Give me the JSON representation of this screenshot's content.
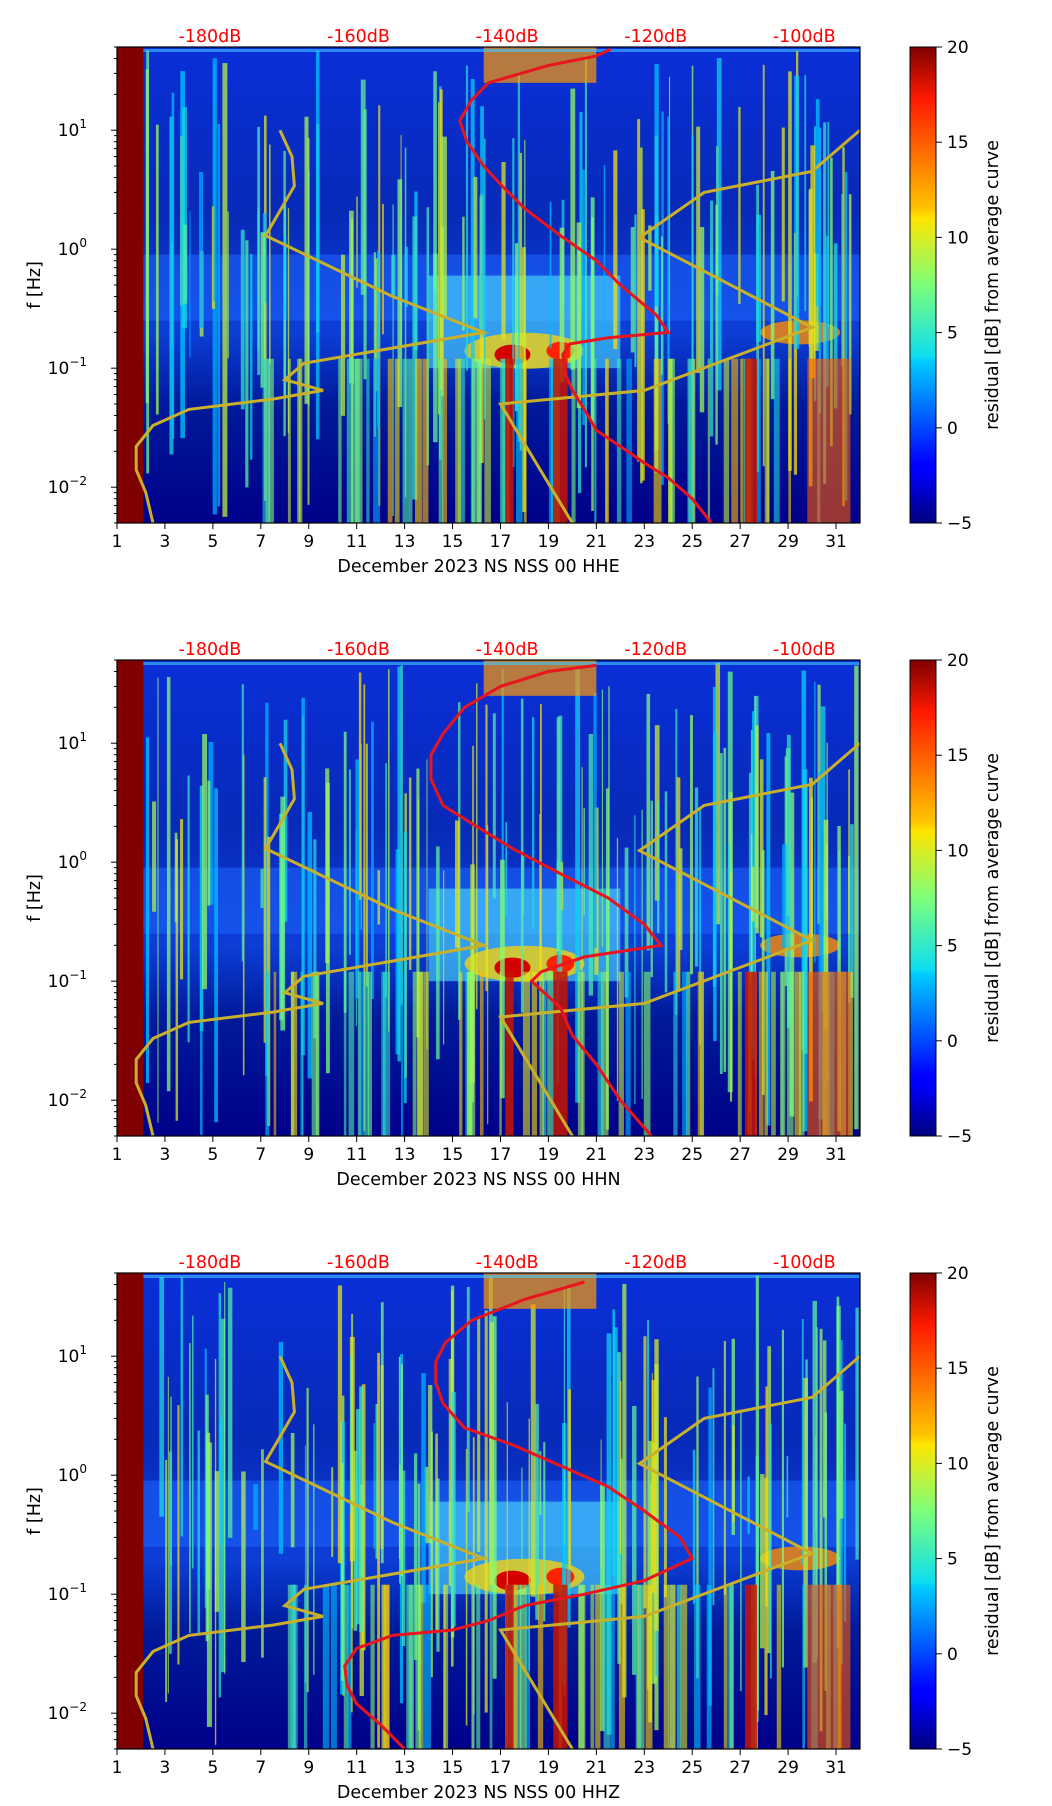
{
  "chart_data": [
    {
      "type": "heatmap",
      "xlabel": "December 2023 NS NSS 00 HHE",
      "ylabel": "f [Hz]",
      "colorbar_label": "residual [dB] from average curve",
      "x_ticks": [
        "1",
        "3",
        "5",
        "7",
        "9",
        "11",
        "13",
        "15",
        "17",
        "19",
        "21",
        "23",
        "25",
        "27",
        "29",
        "31"
      ],
      "y_ticks": [
        "10^{-2}",
        "10^{-1}",
        "10^{0}",
        "10^{1}"
      ],
      "xlim": [
        1,
        32
      ],
      "ylim_hz": [
        0.005,
        50
      ],
      "colorbar_ticks": [
        "−5",
        "0",
        "5",
        "10",
        "15",
        "20"
      ],
      "clim": [
        -5,
        20
      ],
      "top_axis_labels": [
        "-180dB",
        "-160dB",
        "-140dB",
        "-120dB",
        "-100dB"
      ],
      "red_curve": {
        "x": [
          25.8,
          25,
          24,
          23,
          22,
          21,
          20.5,
          20,
          19.7,
          19.6,
          19.9,
          21.5,
          24,
          23.5,
          22,
          21,
          19.5,
          18,
          17,
          16.3,
          15.6,
          15.3,
          15.8,
          16.5,
          19,
          21,
          21.6
        ],
        "f": [
          0.005,
          0.008,
          0.012,
          0.016,
          0.022,
          0.03,
          0.045,
          0.065,
          0.09,
          0.13,
          0.16,
          0.18,
          0.2,
          0.28,
          0.5,
          0.8,
          1.3,
          2.2,
          3.5,
          5,
          8,
          12,
          18,
          25,
          35,
          42,
          48
        ]
      },
      "yellow_curve": {
        "x": [
          2.5,
          2.2,
          1.8,
          1.8,
          2.5,
          4,
          7.5,
          9.6,
          8,
          8.8,
          16.3,
          12.5,
          7.2,
          8.4,
          8.3,
          7.8
        ],
        "f": [
          0.005,
          0.009,
          0.014,
          0.022,
          0.033,
          0.045,
          0.055,
          0.065,
          0.08,
          0.11,
          0.2,
          0.4,
          1.3,
          3.4,
          6,
          10
        ]
      },
      "yellow_curve_right": {
        "x": [
          20,
          17,
          23,
          30,
          22.8,
          25.5,
          30,
          32
        ],
        "f": [
          0.005,
          0.05,
          0.065,
          0.22,
          1.25,
          3,
          4.5,
          10
        ]
      }
    },
    {
      "type": "heatmap",
      "xlabel": "December 2023 NS NSS 00 HHN",
      "ylabel": "f [Hz]",
      "colorbar_label": "residual [dB] from average curve",
      "x_ticks": [
        "1",
        "3",
        "5",
        "7",
        "9",
        "11",
        "13",
        "15",
        "17",
        "19",
        "21",
        "23",
        "25",
        "27",
        "29",
        "31"
      ],
      "y_ticks": [
        "10^{-2}",
        "10^{-1}",
        "10^{0}",
        "10^{1}"
      ],
      "xlim": [
        1,
        32
      ],
      "ylim_hz": [
        0.005,
        50
      ],
      "colorbar_ticks": [
        "−5",
        "0",
        "5",
        "10",
        "15",
        "20"
      ],
      "clim": [
        -5,
        20
      ],
      "top_axis_labels": [
        "-180dB",
        "-160dB",
        "-140dB",
        "-120dB",
        "-100dB"
      ],
      "red_curve": {
        "x": [
          23.3,
          22,
          21,
          20,
          19.5,
          18.3,
          18.7,
          20.5,
          23.7,
          23,
          21.5,
          19.5,
          17.5,
          16,
          14.6,
          14.1,
          14.1,
          14.6,
          15.5,
          17,
          19,
          21
        ],
        "f": [
          0.005,
          0.01,
          0.02,
          0.035,
          0.06,
          0.1,
          0.12,
          0.16,
          0.2,
          0.3,
          0.5,
          0.8,
          1.3,
          2,
          3,
          5,
          8,
          12,
          20,
          30,
          40,
          45
        ]
      },
      "yellow_curve": {
        "x": [
          2.5,
          2.2,
          1.8,
          1.8,
          2.5,
          4,
          7.5,
          9.6,
          8,
          8.8,
          16.3,
          12.5,
          7.2,
          8.4,
          8.3,
          7.8
        ],
        "f": [
          0.005,
          0.009,
          0.014,
          0.022,
          0.033,
          0.045,
          0.055,
          0.065,
          0.08,
          0.11,
          0.2,
          0.4,
          1.3,
          3.4,
          6,
          10
        ]
      },
      "yellow_curve_right": {
        "x": [
          20,
          17,
          23,
          30,
          22.8,
          25.5,
          30,
          32
        ],
        "f": [
          0.005,
          0.05,
          0.065,
          0.22,
          1.25,
          3,
          4.5,
          10
        ]
      }
    },
    {
      "type": "heatmap",
      "xlabel": "December 2023 NS NSS 00 HHZ",
      "ylabel": "f [Hz]",
      "colorbar_label": "residual [dB] from average curve",
      "x_ticks": [
        "1",
        "3",
        "5",
        "7",
        "9",
        "11",
        "13",
        "15",
        "17",
        "19",
        "21",
        "23",
        "25",
        "27",
        "29",
        "31"
      ],
      "y_ticks": [
        "10^{-2}",
        "10^{-1}",
        "10^{0}",
        "10^{1}"
      ],
      "xlim": [
        1,
        32
      ],
      "ylim_hz": [
        0.005,
        50
      ],
      "colorbar_ticks": [
        "−5",
        "0",
        "5",
        "10",
        "15",
        "20"
      ],
      "clim": [
        -5,
        20
      ],
      "top_axis_labels": [
        "-180dB",
        "-160dB",
        "-140dB",
        "-120dB",
        "-100dB"
      ],
      "red_curve": {
        "x": [
          13,
          12,
          11,
          10.6,
          10.5,
          11,
          12.5,
          15,
          16.5,
          18,
          20.5,
          23,
          25,
          24.5,
          23,
          21.5,
          19.5,
          17.5,
          15.5,
          14.6,
          14.3,
          14.3,
          14.7,
          15.8,
          18,
          20.5
        ],
        "f": [
          0.005,
          0.008,
          0.012,
          0.017,
          0.025,
          0.035,
          0.045,
          0.05,
          0.06,
          0.08,
          0.1,
          0.13,
          0.2,
          0.3,
          0.5,
          0.8,
          1.2,
          1.8,
          2.5,
          4,
          6,
          9,
          13,
          20,
          30,
          42
        ]
      },
      "yellow_curve": {
        "x": [
          2.5,
          2.2,
          1.8,
          1.8,
          2.5,
          4,
          7.5,
          9.6,
          8,
          8.8,
          16.3,
          12.5,
          7.2,
          8.4,
          8.3,
          7.8
        ],
        "f": [
          0.005,
          0.009,
          0.014,
          0.022,
          0.033,
          0.045,
          0.055,
          0.065,
          0.08,
          0.11,
          0.2,
          0.4,
          1.3,
          3.4,
          6,
          10
        ]
      },
      "yellow_curve_right": {
        "x": [
          20,
          17,
          23,
          30,
          22.8,
          25.5,
          30,
          32
        ],
        "f": [
          0.005,
          0.05,
          0.065,
          0.22,
          1.25,
          3,
          4.5,
          10
        ]
      }
    }
  ]
}
